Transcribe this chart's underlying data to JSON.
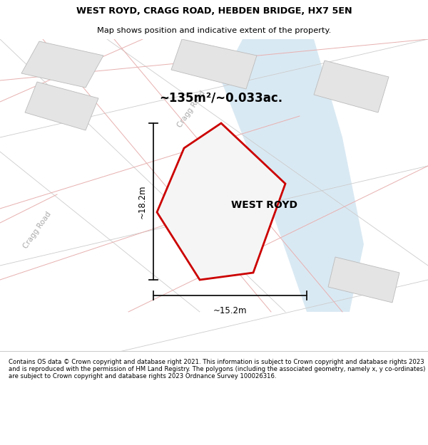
{
  "title_line1": "WEST ROYD, CRAGG ROAD, HEBDEN BRIDGE, HX7 5EN",
  "title_line2": "Map shows position and indicative extent of the property.",
  "area_label": "~135m²/~0.033ac.",
  "property_name": "WEST ROYD",
  "dim_width": "~15.2m",
  "dim_height": "~18.2m",
  "road_label_diag": "Cragg Road",
  "road_label_left": "Cragg Road",
  "footer_text": "Contains OS data © Crown copyright and database right 2021. This information is subject to Crown copyright and database rights 2023 and is reproduced with the permission of HM Land Registry. The polygons (including the associated geometry, namely x, y co-ordinates) are subject to Crown copyright and database rights 2023 Ordnance Survey 100026316.",
  "bg_color": "#f0f0f0",
  "map_bg": "#f2f2f2",
  "blue_band_color": "#d0e4f0",
  "property_poly_fill": "#f5f5f5",
  "property_poly_edge": "#cc0000",
  "building_fill": "#e4e4e4",
  "building_edge": "#bbbbbb",
  "road_line_color": "#e8b0b0",
  "road_gray_color": "#cccccc",
  "footer_bg": "#ffffff",
  "header_bg": "#ffffff",
  "dim_line_color": "#111111",
  "cragg_road_color": "#aaaaaa"
}
